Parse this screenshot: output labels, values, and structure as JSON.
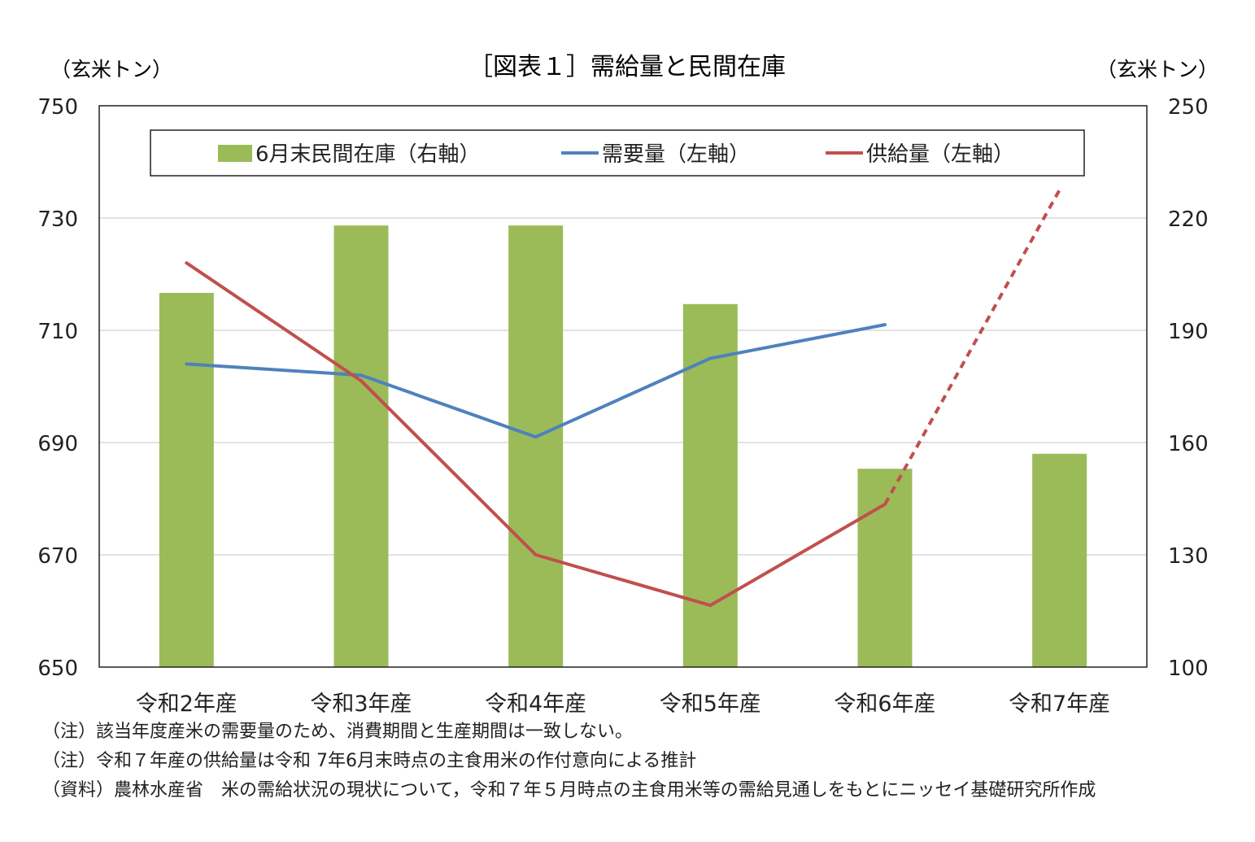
{
  "chart_data": {
    "type": "bar+line",
    "title": "［図表１］需給量と民間在庫",
    "left_axis": {
      "unit": "（玄米トン）",
      "range": [
        650,
        750
      ],
      "ticks": [
        650,
        670,
        690,
        710,
        730,
        750
      ]
    },
    "right_axis": {
      "unit": "（玄米トン）",
      "range": [
        100,
        250
      ],
      "ticks": [
        100,
        130,
        160,
        190,
        220,
        250
      ]
    },
    "categories": [
      "令和2年産",
      "令和3年産",
      "令和4年産",
      "令和5年産",
      "令和6年産",
      "令和7年産"
    ],
    "bars": {
      "name": "6月末民間在庫（右軸）",
      "axis": "right",
      "color": "#9bbb59",
      "values": [
        200,
        218,
        218,
        197,
        153,
        157
      ]
    },
    "lines": [
      {
        "name": "需要量（左軸）",
        "axis": "left",
        "color": "#4f81bd",
        "values": [
          704,
          702,
          691,
          705,
          711,
          null
        ],
        "dashed_from_index": null
      },
      {
        "name": "供給量（左軸）",
        "axis": "left",
        "color": "#c0504d",
        "values": [
          722,
          701,
          670,
          661,
          679,
          735
        ],
        "dashed_from_index": 4
      }
    ],
    "grid": true,
    "legend": {
      "position": "top"
    }
  },
  "notes": [
    "（注）該当年度産米の需要量のため、消費期間と生産期間は一致しない。",
    "（注）令和７年産の供給量は令和 7年6月末時点の主食用米の作付意向による推計",
    "（資料）農林水産省　米の需給状況の現状について，令和７年５月時点の主食用米等の需給見通しをもとにニッセイ基礎研究所作成"
  ]
}
